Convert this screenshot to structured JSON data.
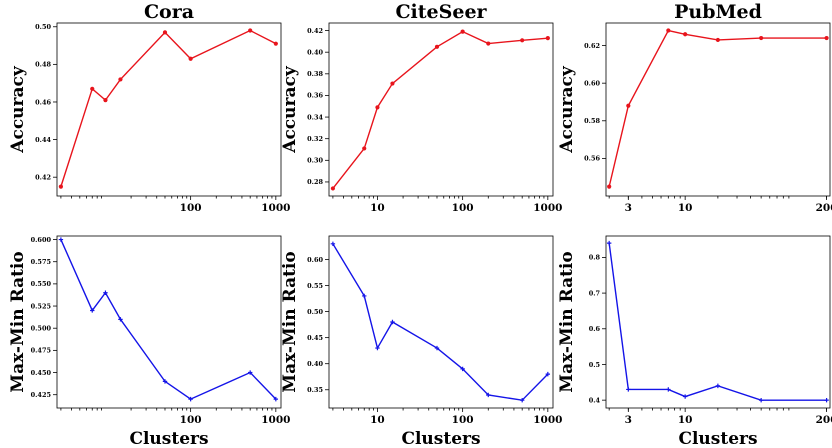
{
  "chart_data": [
    {
      "type": "line",
      "title": "Cora",
      "xlabel": "",
      "ylabel": "Accuracy",
      "xscale": "log",
      "xlim": [
        2.7,
        1150
      ],
      "ylim": [
        0.41,
        0.502
      ],
      "xticks": [
        {
          "v": 100,
          "label": "100"
        },
        {
          "v": 1000,
          "label": "1000"
        }
      ],
      "yticks": [
        {
          "v": 0.42,
          "label": "0.42"
        },
        {
          "v": 0.44,
          "label": "0.44"
        },
        {
          "v": 0.46,
          "label": "0.46"
        },
        {
          "v": 0.48,
          "label": "0.48"
        },
        {
          "v": 0.5,
          "label": "0.50"
        }
      ],
      "color": "#e8141c",
      "marker": "circle",
      "x": [
        3,
        7,
        10,
        15,
        50,
        100,
        500,
        1000
      ],
      "y": [
        0.415,
        0.467,
        0.461,
        0.472,
        0.497,
        0.483,
        0.498,
        0.491
      ]
    },
    {
      "type": "line",
      "title": "CiteSeer",
      "xlabel": "",
      "ylabel": "Accuracy",
      "xscale": "log",
      "xlim": [
        2.7,
        1150
      ],
      "ylim": [
        0.267,
        0.427
      ],
      "xticks": [
        {
          "v": 10,
          "label": "10"
        },
        {
          "v": 100,
          "label": "100"
        },
        {
          "v": 1000,
          "label": "1000"
        }
      ],
      "yticks": [
        {
          "v": 0.28,
          "label": "0.28"
        },
        {
          "v": 0.3,
          "label": "0.30"
        },
        {
          "v": 0.32,
          "label": "0.32"
        },
        {
          "v": 0.34,
          "label": "0.34"
        },
        {
          "v": 0.36,
          "label": "0.36"
        },
        {
          "v": 0.38,
          "label": "0.38"
        },
        {
          "v": 0.4,
          "label": "0.40"
        },
        {
          "v": 0.42,
          "label": "0.42"
        }
      ],
      "color": "#e8141c",
      "marker": "circle",
      "x": [
        3,
        7,
        10,
        15,
        50,
        100,
        200,
        500,
        1000
      ],
      "y": [
        0.274,
        0.311,
        0.349,
        0.371,
        0.405,
        0.419,
        0.408,
        0.411,
        0.413
      ]
    },
    {
      "type": "line",
      "title": "PubMed",
      "xlabel": "",
      "ylabel": "Accuracy",
      "xscale": "log",
      "xlim": [
        1.87,
        215
      ],
      "ylim": [
        0.54,
        0.632
      ],
      "xticks": [
        {
          "v": 3,
          "label": "3"
        },
        {
          "v": 10,
          "label": "10"
        },
        {
          "v": 200,
          "label": "200"
        }
      ],
      "yticks": [
        {
          "v": 0.56,
          "label": "0.56"
        },
        {
          "v": 0.58,
          "label": "0.58"
        },
        {
          "v": 0.6,
          "label": "0.60"
        },
        {
          "v": 0.62,
          "label": "0.62"
        }
      ],
      "color": "#e8141c",
      "marker": "circle",
      "x": [
        2,
        3,
        7,
        10,
        20,
        50,
        200
      ],
      "y": [
        0.545,
        0.588,
        0.628,
        0.626,
        0.623,
        0.624,
        0.624
      ]
    },
    {
      "type": "line",
      "title": "",
      "xlabel": "Clusters",
      "ylabel": "Max-Min Ratio",
      "xscale": "log",
      "xlim": [
        2.7,
        1150
      ],
      "ylim": [
        0.41,
        0.604
      ],
      "xticks": [
        {
          "v": 100,
          "label": "100"
        },
        {
          "v": 1000,
          "label": "1000"
        }
      ],
      "yticks": [
        {
          "v": 0.425,
          "label": "0.425"
        },
        {
          "v": 0.45,
          "label": "0.450"
        },
        {
          "v": 0.475,
          "label": "0.475"
        },
        {
          "v": 0.5,
          "label": "0.500"
        },
        {
          "v": 0.525,
          "label": "0.525"
        },
        {
          "v": 0.55,
          "label": "0.550"
        },
        {
          "v": 0.575,
          "label": "0.575"
        },
        {
          "v": 0.6,
          "label": "0.600"
        }
      ],
      "color": "#1414e8",
      "marker": "plus",
      "x": [
        3,
        7,
        10,
        15,
        50,
        100,
        500,
        1000
      ],
      "y": [
        0.6,
        0.52,
        0.54,
        0.51,
        0.44,
        0.42,
        0.45,
        0.42
      ]
    },
    {
      "type": "line",
      "title": "",
      "xlabel": "Clusters",
      "ylabel": "Max-Min Ratio",
      "xscale": "log",
      "xlim": [
        2.7,
        1150
      ],
      "ylim": [
        0.315,
        0.645
      ],
      "xticks": [
        {
          "v": 10,
          "label": "10"
        },
        {
          "v": 100,
          "label": "100"
        },
        {
          "v": 1000,
          "label": "1000"
        }
      ],
      "yticks": [
        {
          "v": 0.35,
          "label": "0.35"
        },
        {
          "v": 0.4,
          "label": "0.40"
        },
        {
          "v": 0.45,
          "label": "0.45"
        },
        {
          "v": 0.5,
          "label": "0.50"
        },
        {
          "v": 0.55,
          "label": "0.55"
        },
        {
          "v": 0.6,
          "label": "0.60"
        }
      ],
      "color": "#1414e8",
      "marker": "plus",
      "x": [
        3,
        7,
        10,
        15,
        50,
        100,
        200,
        500,
        1000
      ],
      "y": [
        0.63,
        0.53,
        0.43,
        0.48,
        0.43,
        0.39,
        0.34,
        0.33,
        0.38
      ]
    },
    {
      "type": "line",
      "title": "",
      "xlabel": "Clusters",
      "ylabel": "Max-Min Ratio",
      "xscale": "log",
      "xlim": [
        1.87,
        215
      ],
      "ylim": [
        0.378,
        0.86
      ],
      "xticks": [
        {
          "v": 3,
          "label": "3"
        },
        {
          "v": 10,
          "label": "10"
        },
        {
          "v": 200,
          "label": "200"
        }
      ],
      "yticks": [
        {
          "v": 0.4,
          "label": "0.4"
        },
        {
          "v": 0.5,
          "label": "0.5"
        },
        {
          "v": 0.6,
          "label": "0.6"
        },
        {
          "v": 0.7,
          "label": "0.7"
        },
        {
          "v": 0.8,
          "label": "0.8"
        }
      ],
      "color": "#1414e8",
      "marker": "plus",
      "x": [
        2,
        3,
        7,
        10,
        20,
        50,
        200
      ],
      "y": [
        0.84,
        0.43,
        0.43,
        0.41,
        0.44,
        0.4,
        0.4
      ]
    }
  ]
}
